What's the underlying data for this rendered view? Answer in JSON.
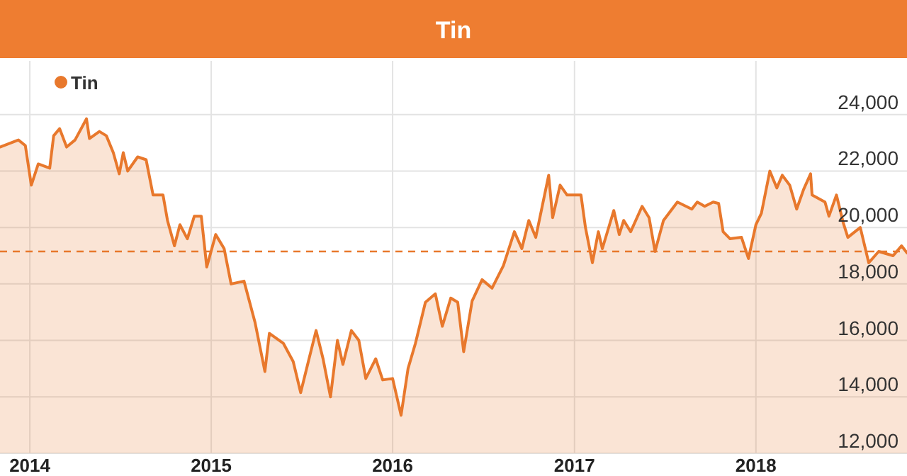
{
  "chart_data": {
    "type": "area",
    "title": "Tin",
    "grid": true,
    "legend": "top left",
    "marker": "none",
    "xlim": [
      "2013-11-02",
      "2018-11-01"
    ],
    "xticks": [
      "2014",
      "2015",
      "2016",
      "2017",
      "2018"
    ],
    "ylim": [
      12000,
      25900
    ],
    "yticks": [
      {
        "value": 12000,
        "label": "12,000"
      },
      {
        "value": 14000,
        "label": "14,000"
      },
      {
        "value": 16000,
        "label": "16,000"
      },
      {
        "value": 18000,
        "label": "18,000"
      },
      {
        "value": 20000,
        "label": "20,000"
      },
      {
        "value": 22000,
        "label": "22,000"
      },
      {
        "value": 24000,
        "label": "24,000"
      }
    ],
    "ref_lines": [
      {
        "axis": "y",
        "value": 19150,
        "color": "#e8782c",
        "line_style": "dashed"
      }
    ],
    "x": [
      "2013-11-02",
      "2013-12-09",
      "2013-12-23",
      "2014-01-04",
      "2014-01-18",
      "2014-02-10",
      "2014-02-18",
      "2014-03-02",
      "2014-03-16",
      "2014-04-02",
      "2014-04-25",
      "2014-05-01",
      "2014-05-21",
      "2014-06-04",
      "2014-06-18",
      "2014-06-30",
      "2014-07-08",
      "2014-07-17",
      "2014-08-06",
      "2014-08-23",
      "2014-09-06",
      "2014-09-26",
      "2014-10-05",
      "2014-10-19",
      "2014-10-30",
      "2014-11-14",
      "2014-11-28",
      "2014-12-12",
      "2014-12-23",
      "2015-01-10",
      "2015-01-27",
      "2015-02-10",
      "2015-03-08",
      "2015-03-30",
      "2015-04-19",
      "2015-04-28",
      "2015-05-26",
      "2015-06-15",
      "2015-06-30",
      "2015-07-14",
      "2015-07-31",
      "2015-08-14",
      "2015-08-29",
      "2015-09-12",
      "2015-09-23",
      "2015-10-10",
      "2015-10-25",
      "2015-11-08",
      "2015-11-28",
      "2015-12-12",
      "2016-01-01",
      "2016-01-18",
      "2016-02-01",
      "2016-02-16",
      "2016-03-07",
      "2016-03-27",
      "2016-04-10",
      "2016-04-27",
      "2016-05-11",
      "2016-05-23",
      "2016-06-09",
      "2016-06-29",
      "2016-07-19",
      "2016-08-11",
      "2016-09-02",
      "2016-09-17",
      "2016-10-01",
      "2016-10-15",
      "2016-11-10",
      "2016-11-18",
      "2016-12-03",
      "2016-12-17",
      "2017-01-14",
      "2017-01-23",
      "2017-02-06",
      "2017-02-18",
      "2017-02-26",
      "2017-03-21",
      "2017-04-01",
      "2017-04-10",
      "2017-04-24",
      "2017-05-17",
      "2017-05-31",
      "2017-06-12",
      "2017-06-29",
      "2017-07-27",
      "2017-08-25",
      "2017-09-05",
      "2017-09-20",
      "2017-10-07",
      "2017-10-18",
      "2017-10-27",
      "2017-11-10",
      "2017-12-03",
      "2017-12-17",
      "2018-01-01",
      "2018-01-12",
      "2018-01-29",
      "2018-02-12",
      "2018-02-23",
      "2018-03-10",
      "2018-03-24",
      "2018-04-07",
      "2018-04-21",
      "2018-04-24",
      "2018-05-20",
      "2018-05-28",
      "2018-06-12",
      "2018-06-26",
      "2018-07-05",
      "2018-07-30",
      "2018-08-16",
      "2018-09-05",
      "2018-10-04",
      "2018-10-21",
      "2018-11-01"
    ],
    "series": [
      {
        "name": "Tin",
        "color": "#e8782c",
        "values": [
          22850,
          23100,
          22900,
          21500,
          22250,
          22100,
          23250,
          23500,
          22850,
          23100,
          23850,
          23150,
          23400,
          23250,
          22650,
          21900,
          22650,
          22000,
          22500,
          22400,
          21150,
          21150,
          20250,
          19350,
          20100,
          19600,
          20400,
          20400,
          18600,
          19750,
          19250,
          18000,
          18100,
          16650,
          14900,
          16250,
          15900,
          15250,
          14150,
          15150,
          16350,
          15350,
          14000,
          16000,
          15150,
          16350,
          16000,
          14650,
          15350,
          14600,
          14650,
          13350,
          15000,
          15900,
          17350,
          17650,
          16500,
          17500,
          17350,
          15600,
          17400,
          18150,
          17850,
          18650,
          19850,
          19250,
          20250,
          19650,
          21850,
          20350,
          21500,
          21150,
          21150,
          20000,
          18750,
          19850,
          19250,
          20600,
          19750,
          20250,
          19850,
          20750,
          20350,
          19150,
          20250,
          20900,
          20650,
          20900,
          20750,
          20900,
          20850,
          19850,
          19600,
          19650,
          18900,
          20100,
          20500,
          22000,
          21400,
          21850,
          21500,
          20650,
          21350,
          21900,
          21150,
          20900,
          20400,
          21150,
          20150,
          19650,
          20000,
          18750,
          19150,
          19000,
          19350,
          19100
        ]
      }
    ]
  }
}
